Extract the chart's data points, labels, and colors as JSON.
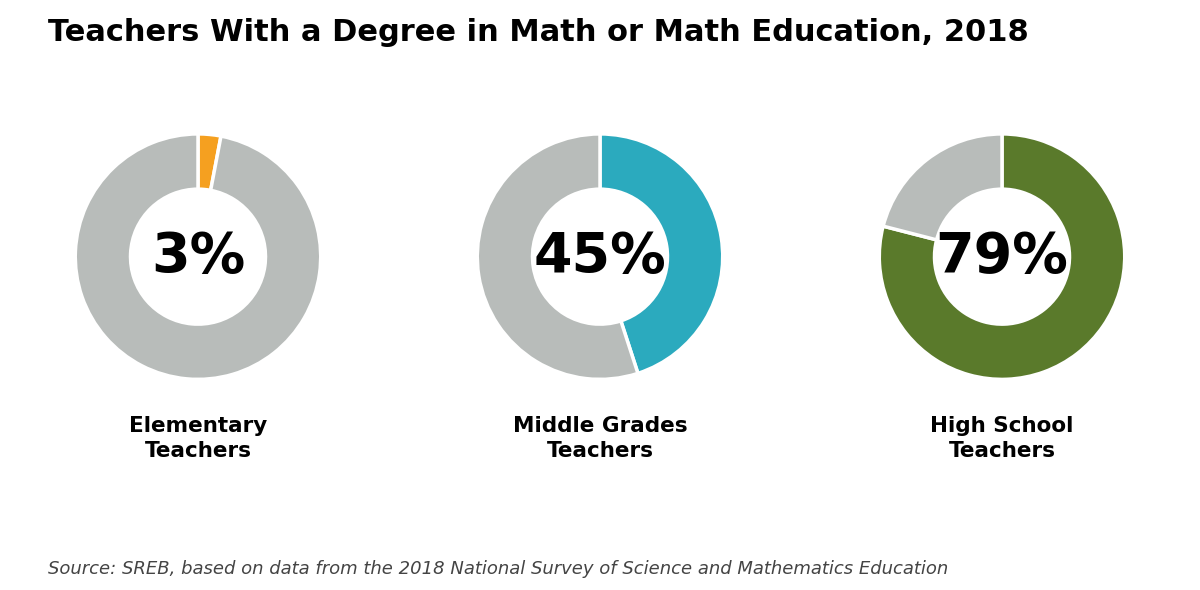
{
  "title": "Teachers With a Degree in Math or Math Education, 2018",
  "source_text": "Source: SREB, based on data from the 2018 National Survey of Science and Mathematics Education",
  "charts": [
    {
      "label": "Elementary\nTeachers",
      "percentage": 3,
      "highlight_color": "#F5A020",
      "bg_color": "#B8BCBA",
      "start_angle": 90
    },
    {
      "label": "Middle Grades\nTeachers",
      "percentage": 45,
      "highlight_color": "#2BAABE",
      "bg_color": "#B8BCBA",
      "start_angle": 90
    },
    {
      "label": "High School\nTeachers",
      "percentage": 79,
      "highlight_color": "#5A7A2B",
      "bg_color": "#B8BCBA",
      "start_angle": 90
    }
  ],
  "background_color": "#FFFFFF",
  "title_fontsize": 22,
  "label_fontsize": 15.5,
  "pct_fontsize": 40,
  "source_fontsize": 13,
  "donut_width": 0.45
}
